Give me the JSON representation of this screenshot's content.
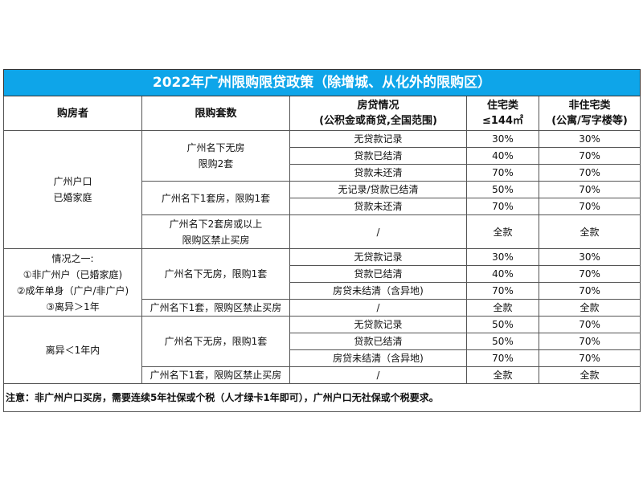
{
  "title": "2022年广州限购限贷政策（除增城、从化外的限购区）",
  "headers": [
    [
      "购房者"
    ],
    [
      "限购套数"
    ],
    [
      "房贷情况",
      "(公积金或商贷,全国范围)"
    ],
    [
      "住宅类",
      "≤144㎡"
    ],
    [
      "非住宅类",
      "(公寓/写字楼等)"
    ]
  ],
  "groups": [
    {
      "buyer": [
        "广州户口",
        "已婚家庭"
      ],
      "quotas": [
        {
          "label": [
            "广州名下无房",
            "限购2套"
          ],
          "loans": [
            [
              "无贷款记录",
              "30%",
              "30%"
            ],
            [
              "贷款已结清",
              "40%",
              "70%"
            ],
            [
              "贷款未还清",
              "70%",
              "70%"
            ]
          ]
        },
        {
          "label": [
            "广州名下1套房，限购1套"
          ],
          "loans": [
            [
              "无记录/贷款已结清",
              "50%",
              "70%"
            ],
            [
              "贷款未还清",
              "70%",
              "70%"
            ]
          ]
        },
        {
          "label": [
            "广州名下2套房或以上",
            "限购区禁止买房"
          ],
          "loans": [
            [
              "/",
              "全款",
              "全款"
            ]
          ]
        }
      ]
    },
    {
      "buyer": [
        "情况之一:",
        "①非广州户（已婚家庭)",
        "②成年单身（广户/非广户)",
        "③离异＞1年"
      ],
      "quotas": [
        {
          "label": [
            "广州名下无房，限购1套"
          ],
          "loans": [
            [
              "无贷款记录",
              "30%",
              "30%"
            ],
            [
              "贷款已结清",
              "40%",
              "70%"
            ],
            [
              "房贷未结清（含异地)",
              "70%",
              "70%"
            ]
          ]
        },
        {
          "label": [
            "广州名下1套，限购区禁止买房"
          ],
          "loans": [
            [
              "/",
              "全款",
              "全款"
            ]
          ]
        }
      ]
    },
    {
      "buyer": [
        "离异＜1年内"
      ],
      "quotas": [
        {
          "label": [
            "广州名下无房，限购1套"
          ],
          "loans": [
            [
              "无贷款记录",
              "50%",
              "70%"
            ],
            [
              "贷款已结清",
              "50%",
              "70%"
            ],
            [
              "房贷未结清（含异地)",
              "70%",
              "70%"
            ]
          ]
        },
        {
          "label": [
            "广州名下1套，限购区禁止买房"
          ],
          "loans": [
            [
              "/",
              "全款",
              "全款"
            ]
          ]
        }
      ]
    }
  ],
  "note": "注意：非广州户口买房，需要连续5年社保或个税（人才绿卡1年即可），广州户口无社保或个税要求。",
  "colors": {
    "title_bg": "#0ea5e9"
  }
}
